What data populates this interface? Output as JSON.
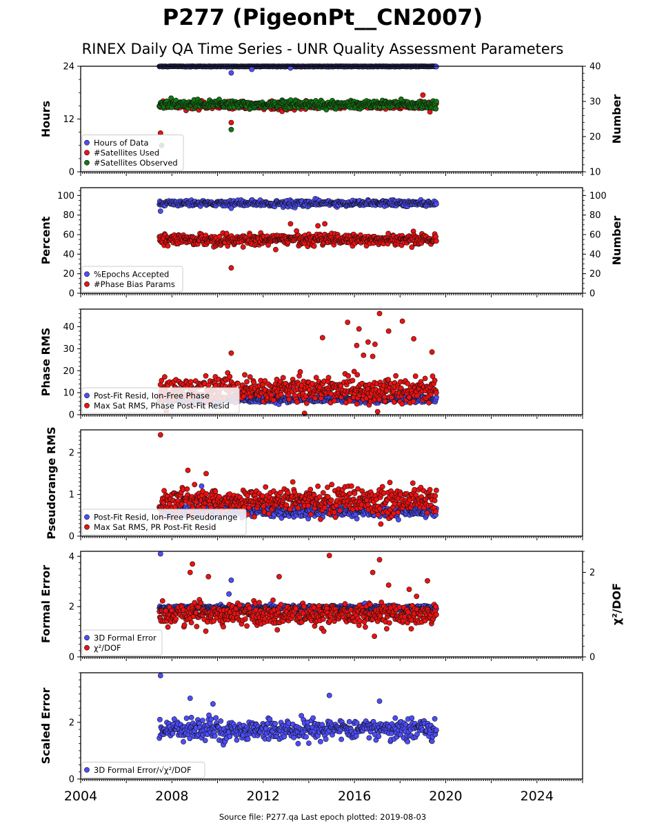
{
  "title": "P277 (PigeonPt__CN2007)",
  "subtitle": "RINEX Daily QA Time Series - UNR Quality Assessment Parameters",
  "footer": "Source file: P277.qa Last epoch plotted: 2019-08-03",
  "colors": {
    "blue": "#4d4dff",
    "red": "#ee1111",
    "green": "#117711",
    "edge": "#111111"
  },
  "chart_data": [
    {
      "type": "scatter",
      "x_range": [
        2004,
        2026
      ],
      "x_ticks": [
        "2004",
        "2008",
        "2012",
        "2016",
        "2020",
        "2024"
      ],
      "ylabel": "Hours",
      "ylim": [
        0,
        24
      ],
      "y_ticks": [
        "0",
        "12",
        "24"
      ],
      "ylabel_right": "Number",
      "ylim_right": [
        10,
        40
      ],
      "y_ticks_right": [
        "10",
        "20",
        "30",
        "40"
      ],
      "legend_position": "lower-left",
      "series": [
        {
          "name": "Hours of Data",
          "color": "blue",
          "axis": "left",
          "x_start": 2007.45,
          "x_end": 2019.59,
          "base": 24,
          "noise": 0.05,
          "outliers": [
            [
              2010.6,
              22.5
            ],
            [
              2011.5,
              23.3
            ],
            [
              2013.2,
              23.6
            ]
          ]
        },
        {
          "name": "#Satellites Used",
          "color": "red",
          "axis": "right",
          "x_start": 2007.45,
          "x_end": 2019.59,
          "base": 28.8,
          "noise": 0.9,
          "outliers": [
            [
              2007.5,
              21
            ],
            [
              2009.3,
              30.2
            ],
            [
              2010.6,
              24
            ],
            [
              2019.0,
              31.8
            ]
          ]
        },
        {
          "name": "#Satellites Observed",
          "color": "green",
          "axis": "right",
          "x_start": 2007.45,
          "x_end": 2019.59,
          "base": 29.2,
          "noise": 0.9,
          "outliers": [
            [
              2010.6,
              22
            ],
            [
              2007.55,
              17.5
            ]
          ]
        }
      ]
    },
    {
      "type": "scatter",
      "x_range": [
        2004,
        2026
      ],
      "ylabel": "Percent",
      "ylim": [
        0,
        108
      ],
      "y_ticks": [
        "0",
        "20",
        "40",
        "60",
        "80",
        "100"
      ],
      "ylabel_right": "Number",
      "ylim_right": [
        0,
        108
      ],
      "y_ticks_right": [
        "0",
        "20",
        "40",
        "60",
        "80",
        "100"
      ],
      "legend_position": "lower-left",
      "series": [
        {
          "name": "%Epochs Accepted",
          "color": "blue",
          "axis": "left",
          "x_start": 2007.45,
          "x_end": 2019.59,
          "base": 92,
          "noise": 2.5,
          "outliers": [
            [
              2007.5,
              84
            ],
            [
              2010.6,
              87
            ]
          ]
        },
        {
          "name": "#Phase Bias Params",
          "color": "red",
          "axis": "right",
          "x_start": 2007.45,
          "x_end": 2019.59,
          "base": 55,
          "noise": 5,
          "outliers": [
            [
              2010.6,
              26
            ],
            [
              2013.2,
              71
            ],
            [
              2014.7,
              71
            ],
            [
              2014.4,
              69
            ]
          ]
        }
      ]
    },
    {
      "type": "scatter",
      "x_range": [
        2004,
        2026
      ],
      "ylabel": "Phase RMS",
      "ylim": [
        0,
        48
      ],
      "y_ticks": [
        "0",
        "10",
        "20",
        "30",
        "40"
      ],
      "legend_position": "lower-left",
      "series": [
        {
          "name": "Post-Fit Resid, Ion-Free Phase",
          "color": "blue",
          "axis": "left",
          "x_start": 2007.45,
          "x_end": 2019.59,
          "base": 7,
          "noise": 1.2,
          "outliers": []
        },
        {
          "name": "Max Sat RMS, Phase Post-Fit Resid",
          "color": "red",
          "axis": "left",
          "x_start": 2007.45,
          "x_end": 2019.59,
          "base": 11,
          "noise": 5,
          "outliers": [
            [
              2010.6,
              28
            ],
            [
              2014.6,
              35
            ],
            [
              2015.7,
              42
            ],
            [
              2016.1,
              31.5
            ],
            [
              2016.2,
              39
            ],
            [
              2016.6,
              33
            ],
            [
              2016.9,
              32
            ],
            [
              2017.1,
              46
            ],
            [
              2017.5,
              38
            ],
            [
              2018.1,
              42.5
            ],
            [
              2018.6,
              34.5
            ],
            [
              2019.4,
              28.5
            ],
            [
              2016.4,
              27
            ],
            [
              2016.8,
              26.5
            ]
          ]
        }
      ]
    },
    {
      "type": "scatter",
      "x_range": [
        2004,
        2026
      ],
      "ylabel": "Pseudorange RMS",
      "ylim": [
        0,
        2.55
      ],
      "y_ticks": [
        "0",
        "1",
        "2"
      ],
      "legend_position": "lower-left",
      "series": [
        {
          "name": "Post-Fit Resid, Ion-Free Pseudorange",
          "color": "blue",
          "axis": "left",
          "x_start": 2007.45,
          "x_end": 2019.59,
          "base": 0.6,
          "noise": 0.12,
          "outliers": [
            [
              2009.3,
              1.2
            ]
          ]
        },
        {
          "name": "Max Sat RMS, PR Post-Fit Resid",
          "color": "red",
          "axis": "left",
          "x_start": 2007.45,
          "x_end": 2019.59,
          "base": 0.85,
          "noise": 0.25,
          "outliers": [
            [
              2007.5,
              2.43
            ],
            [
              2008.7,
              1.58
            ],
            [
              2009.5,
              1.5
            ],
            [
              2013.3,
              1.3
            ]
          ]
        }
      ]
    },
    {
      "type": "scatter",
      "x_range": [
        2004,
        2026
      ],
      "ylabel": "Formal Error",
      "ylim": [
        0,
        4.2
      ],
      "y_ticks": [
        "0",
        "2",
        "4"
      ],
      "ylabel_right": "χ²/DOF",
      "ylim_right": [
        0,
        2.5
      ],
      "y_ticks_right": [
        "0",
        "2"
      ],
      "legend_position": "lower-left",
      "series": [
        {
          "name": "3D Formal Error",
          "color": "blue",
          "axis": "left",
          "x_start": 2007.45,
          "x_end": 2019.59,
          "base": 1.95,
          "noise": 0.08,
          "outliers": [
            [
              2007.5,
              4.1
            ],
            [
              2010.6,
              3.05
            ],
            [
              2010.5,
              2.5
            ]
          ]
        },
        {
          "name": "χ²/DOF",
          "color": "red",
          "axis": "right",
          "x_start": 2007.45,
          "x_end": 2019.59,
          "base": 1.0,
          "noise": 0.22,
          "outliers": [
            [
              2008.8,
              2.0
            ],
            [
              2008.9,
              2.2
            ],
            [
              2009.6,
              1.9
            ],
            [
              2012.7,
              1.9
            ],
            [
              2014.9,
              2.4
            ],
            [
              2016.8,
              2.0
            ],
            [
              2017.1,
              2.3
            ],
            [
              2017.5,
              1.7
            ],
            [
              2018.4,
              1.6
            ],
            [
              2019.2,
              1.8
            ]
          ]
        }
      ]
    },
    {
      "type": "scatter",
      "x_range": [
        2004,
        2026
      ],
      "ylabel": "Scaled Error",
      "ylim": [
        0,
        3.75
      ],
      "y_ticks": [
        "0",
        "2"
      ],
      "legend_position": "lower-left",
      "series": [
        {
          "name": "3D Formal Error/√χ²/DOF",
          "color": "blue",
          "axis": "left",
          "x_start": 2007.45,
          "x_end": 2019.59,
          "base": 1.75,
          "noise": 0.3,
          "outliers": [
            [
              2007.5,
              3.65
            ],
            [
              2008.8,
              2.85
            ],
            [
              2009.8,
              2.65
            ],
            [
              2014.9,
              2.95
            ],
            [
              2017.1,
              2.75
            ]
          ]
        }
      ]
    }
  ]
}
